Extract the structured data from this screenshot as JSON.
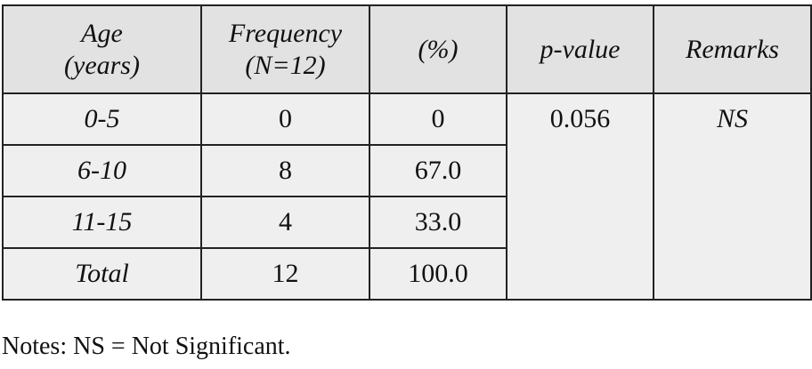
{
  "table": {
    "header": [
      [
        "Age",
        "(years)"
      ],
      [
        "Frequency",
        "(N=12)"
      ],
      [
        "(%)"
      ],
      [
        "p-value"
      ],
      [
        "Remarks"
      ]
    ],
    "rows": [
      [
        "0-5",
        "0",
        "0",
        "0.056",
        "NS"
      ],
      [
        "6-10",
        "8",
        "67.0"
      ],
      [
        "11-15",
        "4",
        "33.0"
      ],
      [
        "Total",
        "12",
        "100.0"
      ]
    ]
  },
  "notes": "Notes: NS = Not Significant."
}
